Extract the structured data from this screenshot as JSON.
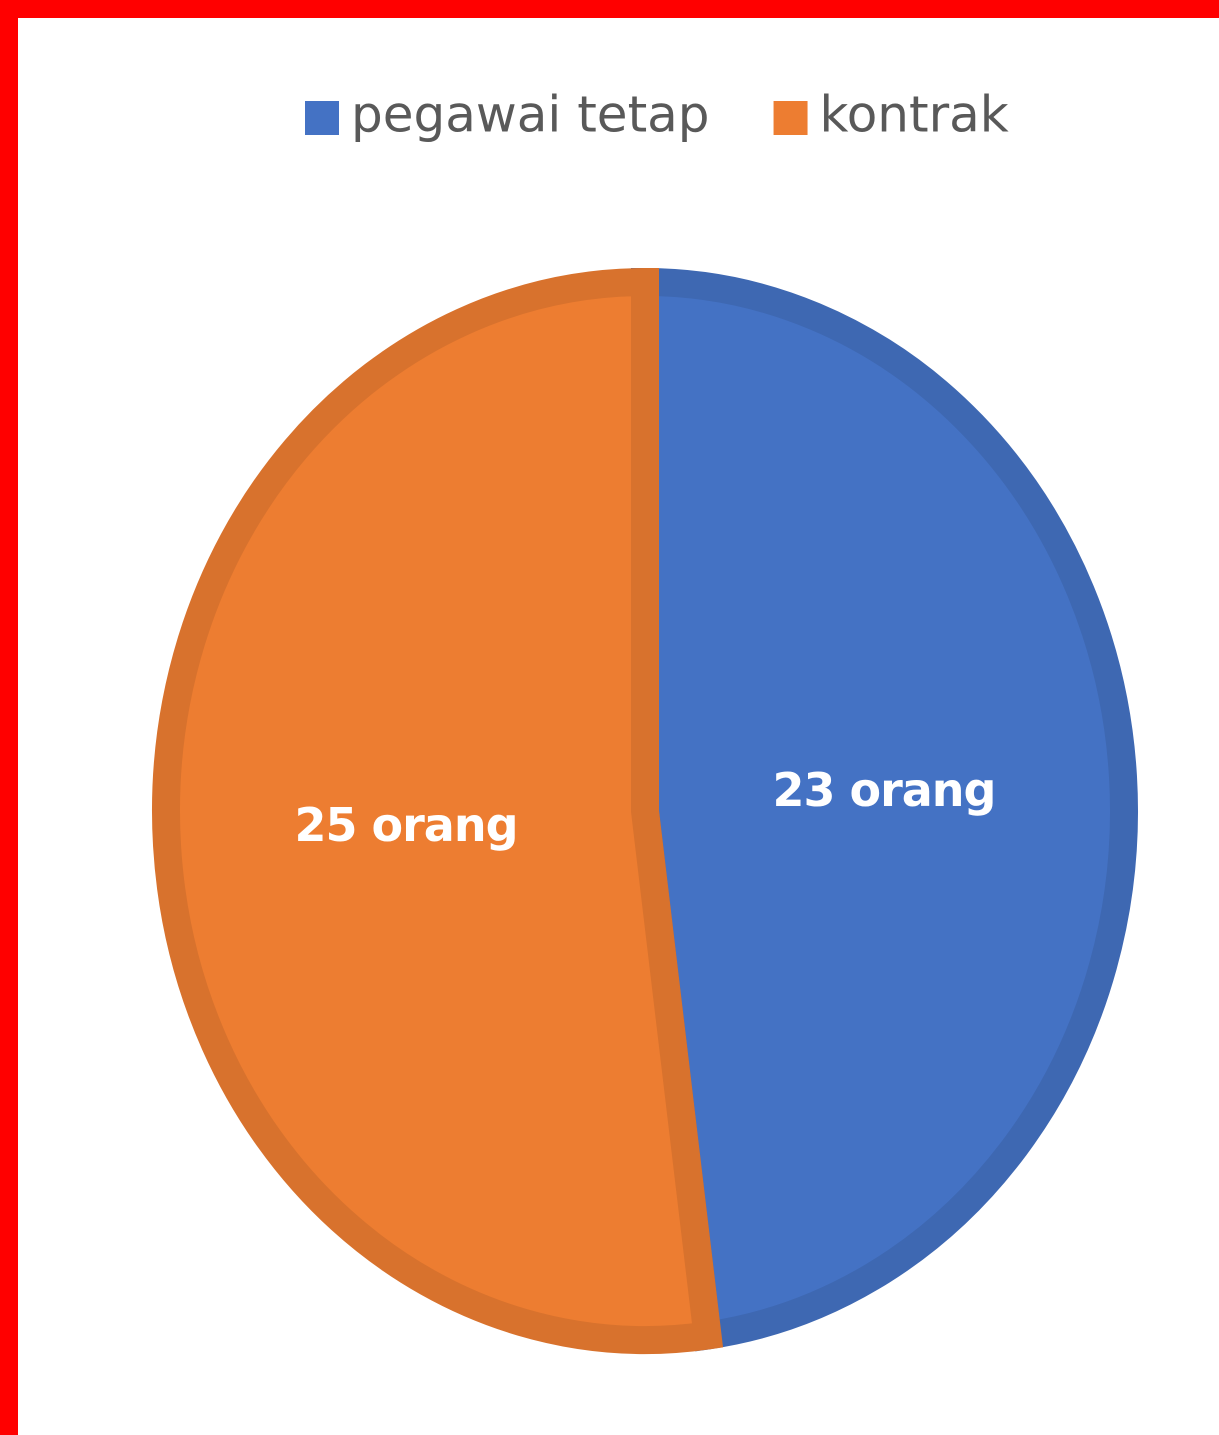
{
  "chart_data": {
    "type": "pie",
    "categories": [
      "pegawai tetap",
      "kontrak"
    ],
    "values": [
      23,
      25
    ],
    "value_labels": [
      "23 orang",
      "25 orang"
    ],
    "colors": [
      "#4472c4",
      "#ed7d31"
    ],
    "legend": "top"
  }
}
